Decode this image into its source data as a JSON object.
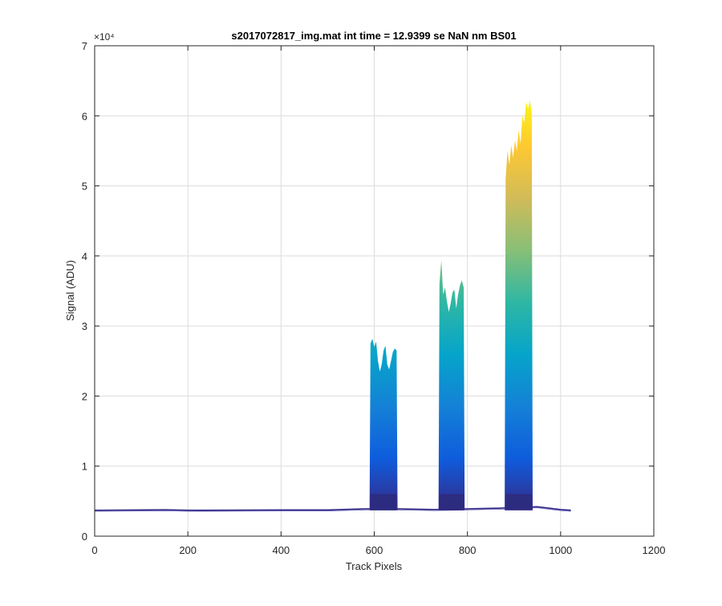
{
  "chart_data": {
    "type": "area",
    "title": "s2017072817_img.mat int time = 12.9399 se  NaN nm BS01",
    "xlabel": "Track Pixels",
    "ylabel": "Signal (ADU)",
    "xlim": [
      0,
      1200
    ],
    "ylim": [
      0,
      70000
    ],
    "y_exponent_label": "×10⁴",
    "x_ticks": [
      0,
      200,
      400,
      600,
      800,
      1000,
      1200
    ],
    "x_tick_labels": [
      "0",
      "200",
      "400",
      "600",
      "800",
      "1000",
      "1200"
    ],
    "y_ticks": [
      0,
      10000,
      20000,
      30000,
      40000,
      50000,
      60000,
      70000
    ],
    "y_tick_labels": [
      "0",
      "1",
      "2",
      "3",
      "4",
      "5",
      "6",
      "7"
    ],
    "grid": true,
    "colormap": [
      "#352a87",
      "#0f5cdd",
      "#1481d6",
      "#06a4ca",
      "#2eb7a4",
      "#87bf77",
      "#d1bb59",
      "#fec832",
      "#f9fb0e"
    ],
    "baseline": [
      [
        0,
        3700
      ],
      [
        100,
        3750
      ],
      [
        150,
        3780
      ],
      [
        200,
        3700
      ],
      [
        300,
        3720
      ],
      [
        400,
        3750
      ],
      [
        500,
        3750
      ],
      [
        580,
        3900
      ],
      [
        650,
        3900
      ],
      [
        730,
        3800
      ],
      [
        800,
        3900
      ],
      [
        870,
        4000
      ],
      [
        950,
        4200
      ],
      [
        1000,
        3800
      ],
      [
        1022,
        3700
      ]
    ],
    "peaks": [
      {
        "x": [
          590,
          592,
          596,
          600,
          604,
          608,
          612,
          616,
          620,
          624,
          628,
          632,
          636,
          640,
          644,
          648,
          650
        ],
        "y": [
          4000,
          27500,
          28200,
          27000,
          27800,
          25000,
          23500,
          24500,
          26500,
          27200,
          24500,
          23800,
          25000,
          26300,
          26800,
          26500,
          4000
        ]
      },
      {
        "x": [
          738,
          740,
          744,
          748,
          752,
          756,
          760,
          764,
          768,
          772,
          776,
          780,
          784,
          788,
          792,
          794
        ],
        "y": [
          4000,
          36000,
          39400,
          34500,
          35500,
          33500,
          32000,
          33200,
          34800,
          35200,
          32500,
          34500,
          35800,
          36500,
          35500,
          4000
        ]
      },
      {
        "x": [
          880,
          882,
          886,
          890,
          894,
          898,
          902,
          906,
          910,
          914,
          918,
          922,
          926,
          930,
          934,
          938,
          940
        ],
        "y": [
          4500,
          51000,
          55000,
          53000,
          55800,
          54000,
          56500,
          55000,
          58000,
          56000,
          60000,
          59000,
          62000,
          61000,
          62200,
          60500,
          4500
        ]
      }
    ]
  }
}
